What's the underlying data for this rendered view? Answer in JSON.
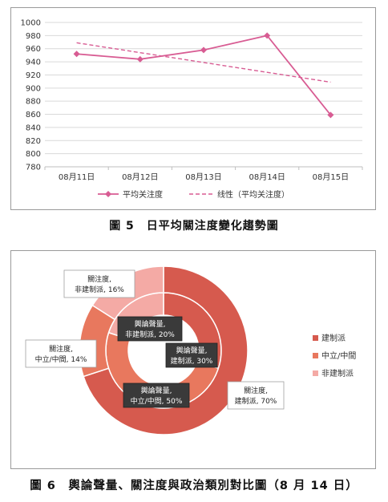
{
  "figure5": {
    "caption": "圖 5　日平均關注度變化趨勢圖"
  },
  "figure6": {
    "caption": "圖 6　輿論聲量、關注度與政治類別對比圖（8 月 14 日）"
  },
  "colors": {
    "line": "#d85c93",
    "trend": "#d85c93",
    "grid": "#d9d9d9",
    "establishment": "#d65a4e",
    "neutral": "#e8785e",
    "non_establishment": "#f4aaa5",
    "dark_label_bg": "#3a3a3a"
  },
  "chart_data": [
    {
      "type": "line",
      "categories": [
        "08月11日",
        "08月12日",
        "08月13日",
        "08月14日",
        "08月15日"
      ],
      "series": [
        {
          "name": "平均关注度",
          "values": [
            952,
            944,
            958,
            980,
            859
          ],
          "style": "solid",
          "marker": "diamond"
        },
        {
          "name": "线性（平均关注度）",
          "values": [
            969,
            954,
            939,
            924,
            909
          ],
          "style": "dashed"
        }
      ],
      "ylim": [
        780,
        1000
      ],
      "yticks": [
        780,
        800,
        820,
        840,
        860,
        880,
        900,
        920,
        940,
        960,
        980,
        1000
      ],
      "grid": true,
      "legend_position": "bottom"
    },
    {
      "type": "pie",
      "subtype": "donut",
      "legend": [
        "建制派",
        "中立/中間",
        "非建制派"
      ],
      "legend_position": "right",
      "rings": [
        {
          "ring": "inner",
          "name": "輿論聲量",
          "slices": [
            {
              "category": "建制派",
              "value": 30,
              "label_line1": "輿論聲量,",
              "label_line2": "建制派, 30%"
            },
            {
              "category": "中立/中間",
              "value": 50,
              "label_line1": "輿論聲量,",
              "label_line2": "中立/中間, 50%"
            },
            {
              "category": "非建制派",
              "value": 20,
              "label_line1": "輿論聲量,",
              "label_line2": "非建制派, 20%"
            }
          ]
        },
        {
          "ring": "outer",
          "name": "關注度",
          "slices": [
            {
              "category": "建制派",
              "value": 70,
              "label_line1": "關注度,",
              "label_line2": "建制派, 70%"
            },
            {
              "category": "中立/中間",
              "value": 14,
              "label_line1": "關注度,",
              "label_line2": "中立/中間, 14%"
            },
            {
              "category": "非建制派",
              "value": 16,
              "label_line1": "關注度,",
              "label_line2": "非建制派, 16%"
            }
          ]
        }
      ]
    }
  ]
}
